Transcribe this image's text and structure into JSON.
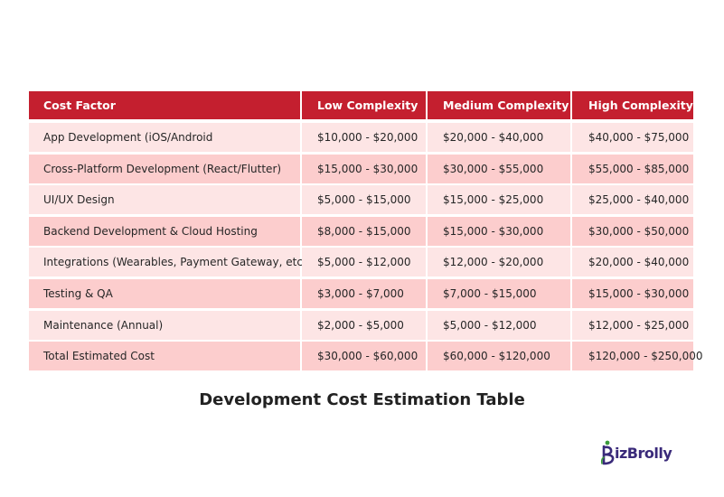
{
  "table": {
    "headers": [
      "Cost Factor",
      "Low Complexity",
      "Medium Complexity",
      "High Complexity"
    ],
    "rows": [
      [
        "App Development (iOS/Android",
        "$10,000 - $20,000",
        "$20,000 - $40,000",
        "$40,000 - $75,000"
      ],
      [
        "Cross-Platform Development (React/Flutter)",
        "$15,000 - $30,000",
        "$30,000 - $55,000",
        "$55,000 - $85,000"
      ],
      [
        "UI/UX Design",
        "$5,000 - $15,000",
        "$15,000 - $25,000",
        "$25,000 - $40,000"
      ],
      [
        "Backend Development & Cloud Hosting",
        "$8,000 - $15,000",
        "$15,000 - $30,000",
        "$30,000 - $50,000"
      ],
      [
        "Integrations (Wearables, Payment Gateway, etc.)",
        "$5,000 - $12,000",
        "$12,000 - $20,000",
        "$20,000 - $40,000"
      ],
      [
        "Testing & QA",
        "$3,000 - $7,000",
        "$7,000 - $15,000",
        "$15,000 - $30,000"
      ],
      [
        "Maintenance (Annual)",
        "$2,000 - $5,000",
        "$5,000 - $12,000",
        "$12,000 - $25,000"
      ],
      [
        "Total Estimated Cost",
        "$30,000 - $60,000",
        "$60,000 - $120,000",
        "$120,000 - $250,000"
      ]
    ]
  },
  "caption": "Development Cost Estimation Table",
  "logo": {
    "text_a": "izBrolly",
    "text_b": "",
    "color_primary": "#3a2a7a",
    "color_accent": "#3a9a3a"
  },
  "colors": {
    "header_bg": "#c41f2f",
    "row_light": "#fde5e5",
    "row_dark": "#fccdcd"
  }
}
